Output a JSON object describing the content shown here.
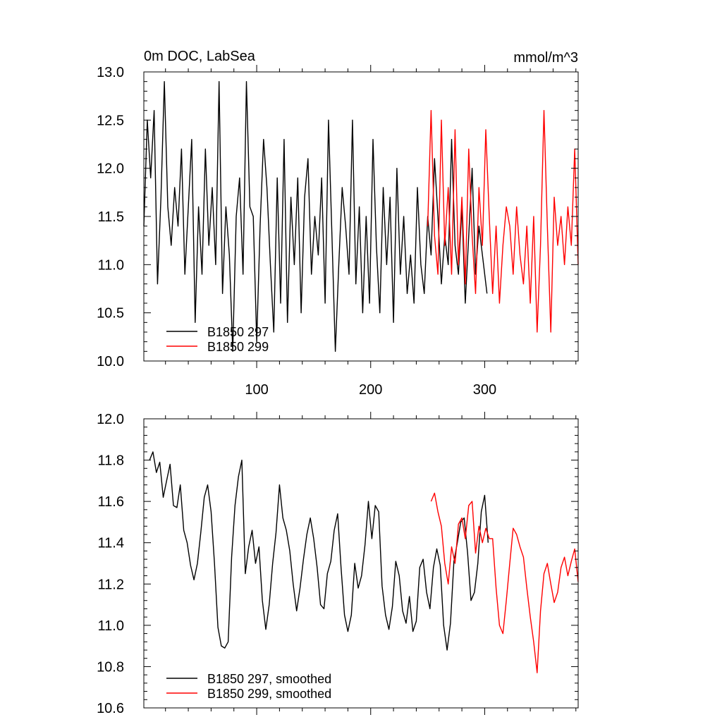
{
  "chart_data": [
    {
      "type": "line",
      "title": "0m DOC, LabSea",
      "units": "mmol/m^3",
      "xlim": [
        1,
        382
      ],
      "ylim": [
        10.0,
        13.0
      ],
      "xticks": [
        100,
        200,
        300
      ],
      "yticks": [
        10.0,
        10.5,
        11.0,
        11.5,
        12.0,
        12.5,
        13.0
      ],
      "ytick_labels": [
        "10.0",
        "10.5",
        "11.0",
        "11.5",
        "12.0",
        "12.5",
        "13.0"
      ],
      "xtick_labels": [
        "100",
        "200",
        "300"
      ],
      "legend_position": "bottom-left",
      "series": [
        {
          "name": "B1850 297",
          "color": "#000000",
          "x": [
            1,
            4,
            7,
            10,
            13,
            16,
            19,
            22,
            25,
            28,
            31,
            34,
            37,
            40,
            43,
            46,
            49,
            52,
            55,
            58,
            61,
            64,
            67,
            70,
            73,
            76,
            79,
            82,
            85,
            88,
            91,
            94,
            97,
            100,
            103,
            106,
            109,
            112,
            115,
            118,
            121,
            124,
            127,
            130,
            133,
            136,
            139,
            142,
            145,
            148,
            151,
            154,
            157,
            160,
            163,
            166,
            169,
            172,
            175,
            178,
            181,
            184,
            187,
            190,
            193,
            196,
            199,
            202,
            205,
            208,
            211,
            214,
            217,
            220,
            223,
            226,
            229,
            232,
            235,
            238,
            241,
            244,
            247,
            250,
            253,
            256,
            259,
            262,
            265,
            268,
            271,
            274,
            277,
            280,
            283,
            286,
            289,
            292,
            295,
            298,
            302
          ],
          "y": [
            11.4,
            12.5,
            11.9,
            12.6,
            10.8,
            11.7,
            12.9,
            11.6,
            11.2,
            11.8,
            11.4,
            12.2,
            10.9,
            11.6,
            12.3,
            10.4,
            11.6,
            10.9,
            12.2,
            11.2,
            11.8,
            11.0,
            12.9,
            10.7,
            11.6,
            11.1,
            10.1,
            11.5,
            11.9,
            10.9,
            12.9,
            11.6,
            11.5,
            10.2,
            11.4,
            12.3,
            11.8,
            11.0,
            10.3,
            11.9,
            10.6,
            12.3,
            10.4,
            11.7,
            11.0,
            11.9,
            10.5,
            11.7,
            12.1,
            10.9,
            11.5,
            11.1,
            11.9,
            10.6,
            12.5,
            11.3,
            10.1,
            11.0,
            11.8,
            11.4,
            10.9,
            12.5,
            10.8,
            11.6,
            10.5,
            11.5,
            10.6,
            12.3,
            11.2,
            10.5,
            11.8,
            11.0,
            11.7,
            10.4,
            12.0,
            10.9,
            11.5,
            10.7,
            11.1,
            10.6,
            11.8,
            11.0,
            10.7,
            11.5,
            11.1,
            12.1,
            11.5,
            10.8,
            11.3,
            11.0,
            12.3,
            11.2,
            10.9,
            11.6,
            10.6,
            11.3,
            12.0,
            10.9,
            11.4,
            11.1,
            10.7
          ]
        },
        {
          "name": "B1850 299",
          "color": "#ff0000",
          "x": [
            250,
            253,
            256,
            259,
            262,
            265,
            268,
            271,
            274,
            277,
            280,
            283,
            286,
            289,
            292,
            295,
            298,
            301,
            304,
            307,
            310,
            313,
            316,
            319,
            322,
            325,
            328,
            331,
            334,
            337,
            340,
            343,
            346,
            349,
            352,
            355,
            358,
            361,
            364,
            367,
            370,
            373,
            376,
            379,
            382
          ],
          "y": [
            11.4,
            12.6,
            11.3,
            10.9,
            12.5,
            11.2,
            11.8,
            10.9,
            12.4,
            11.0,
            11.7,
            10.8,
            12.2,
            11.3,
            10.7,
            11.8,
            11.2,
            12.4,
            11.5,
            10.7,
            11.4,
            10.6,
            11.2,
            11.6,
            11.4,
            10.9,
            11.6,
            11.1,
            10.8,
            11.4,
            10.6,
            11.5,
            10.3,
            11.2,
            12.6,
            11.4,
            10.3,
            11.7,
            11.2,
            11.5,
            11.0,
            11.6,
            11.2,
            12.2,
            11.0
          ]
        }
      ]
    },
    {
      "type": "line",
      "title": "",
      "xlim": [
        1,
        382
      ],
      "ylim": [
        10.6,
        12.0
      ],
      "xticks": [
        100,
        200,
        300
      ],
      "yticks": [
        10.6,
        10.8,
        11.0,
        11.2,
        11.4,
        11.6,
        11.8,
        12.0
      ],
      "ytick_labels": [
        "10.6",
        "10.8",
        "11.0",
        "11.2",
        "11.4",
        "11.6",
        "11.8",
        "12.0"
      ],
      "legend_position": "bottom-left",
      "series": [
        {
          "name": "B1850 297, smoothed",
          "color": "#000000",
          "x": [
            6,
            9,
            12,
            15,
            18,
            21,
            24,
            27,
            30,
            33,
            36,
            39,
            42,
            45,
            48,
            51,
            54,
            57,
            60,
            63,
            66,
            69,
            72,
            75,
            78,
            81,
            84,
            87,
            90,
            93,
            96,
            99,
            102,
            105,
            108,
            111,
            114,
            117,
            120,
            123,
            126,
            129,
            132,
            135,
            138,
            141,
            144,
            147,
            150,
            153,
            156,
            159,
            162,
            165,
            168,
            171,
            174,
            177,
            180,
            183,
            186,
            189,
            192,
            195,
            198,
            201,
            204,
            207,
            210,
            213,
            216,
            219,
            222,
            225,
            228,
            231,
            234,
            237,
            240,
            243,
            246,
            249,
            252,
            255,
            258,
            261,
            264,
            267,
            270,
            273,
            276,
            279,
            282,
            285,
            288,
            291,
            294,
            297,
            300,
            303
          ],
          "y": [
            11.8,
            11.84,
            11.74,
            11.79,
            11.62,
            11.7,
            11.78,
            11.58,
            11.57,
            11.68,
            11.46,
            11.4,
            11.29,
            11.22,
            11.3,
            11.45,
            11.62,
            11.68,
            11.55,
            11.3,
            10.99,
            10.9,
            10.89,
            10.92,
            11.33,
            11.58,
            11.72,
            11.8,
            11.25,
            11.38,
            11.46,
            11.3,
            11.38,
            11.12,
            10.98,
            11.1,
            11.3,
            11.45,
            11.68,
            11.52,
            11.46,
            11.36,
            11.2,
            11.07,
            11.18,
            11.32,
            11.44,
            11.52,
            11.42,
            11.28,
            11.1,
            11.08,
            11.25,
            11.31,
            11.46,
            11.54,
            11.28,
            11.05,
            10.97,
            11.05,
            11.3,
            11.18,
            11.24,
            11.39,
            11.6,
            11.42,
            11.58,
            11.55,
            11.19,
            11.05,
            10.98,
            11.09,
            11.31,
            11.24,
            11.07,
            11.01,
            11.14,
            10.97,
            11.02,
            11.28,
            11.32,
            11.16,
            11.08,
            11.28,
            11.37,
            11.29,
            11.0,
            10.88,
            11.01,
            11.31,
            11.4,
            11.5,
            11.52,
            11.35,
            11.12,
            11.16,
            11.3,
            11.55,
            11.63,
            11.4
          ]
        },
        {
          "name": "B1850 299, smoothed",
          "color": "#ff0000",
          "x": [
            253,
            256,
            259,
            262,
            265,
            268,
            271,
            274,
            277,
            280,
            283,
            286,
            289,
            292,
            295,
            298,
            301,
            304,
            307,
            310,
            313,
            316,
            319,
            322,
            325,
            328,
            331,
            334,
            337,
            340,
            343,
            346,
            349,
            352,
            355,
            358,
            361,
            364,
            367,
            370,
            373,
            376,
            379,
            382
          ],
          "y": [
            11.6,
            11.64,
            11.55,
            11.48,
            11.3,
            11.2,
            11.38,
            11.3,
            11.49,
            11.52,
            11.42,
            11.58,
            11.6,
            11.35,
            11.48,
            11.4,
            11.47,
            11.42,
            11.42,
            11.18,
            11.0,
            10.96,
            11.12,
            11.3,
            11.47,
            11.44,
            11.38,
            11.33,
            11.18,
            11.04,
            10.92,
            10.77,
            11.07,
            11.25,
            11.3,
            11.2,
            11.11,
            11.16,
            11.28,
            11.33,
            11.24,
            11.31,
            11.37,
            11.21
          ]
        }
      ]
    }
  ]
}
